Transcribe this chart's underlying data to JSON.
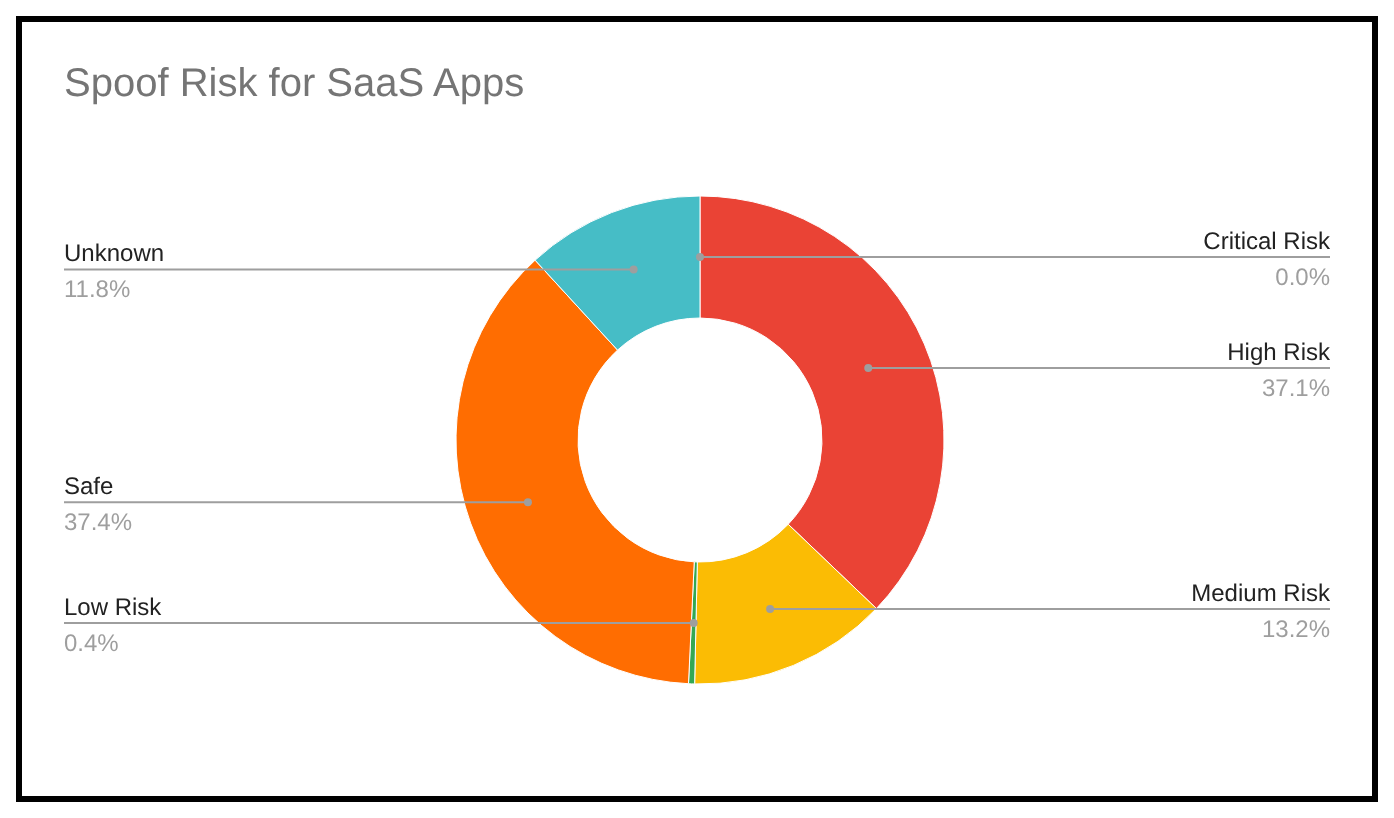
{
  "chart_data": {
    "type": "donut",
    "title": "Spoof Risk for SaaS Apps",
    "categories": [
      "Critical Risk",
      "High Risk",
      "Medium Risk",
      "Low Risk",
      "Safe",
      "Unknown"
    ],
    "values": [
      0.0,
      37.1,
      13.2,
      0.4,
      37.4,
      11.8
    ],
    "value_labels": [
      "0.0%",
      "37.1%",
      "13.2%",
      "0.4%",
      "37.4%",
      "11.8%"
    ],
    "colors": [
      "#4285f4",
      "#ea4335",
      "#fbbc04",
      "#34a853",
      "#ff6d01",
      "#46bdc6"
    ]
  }
}
